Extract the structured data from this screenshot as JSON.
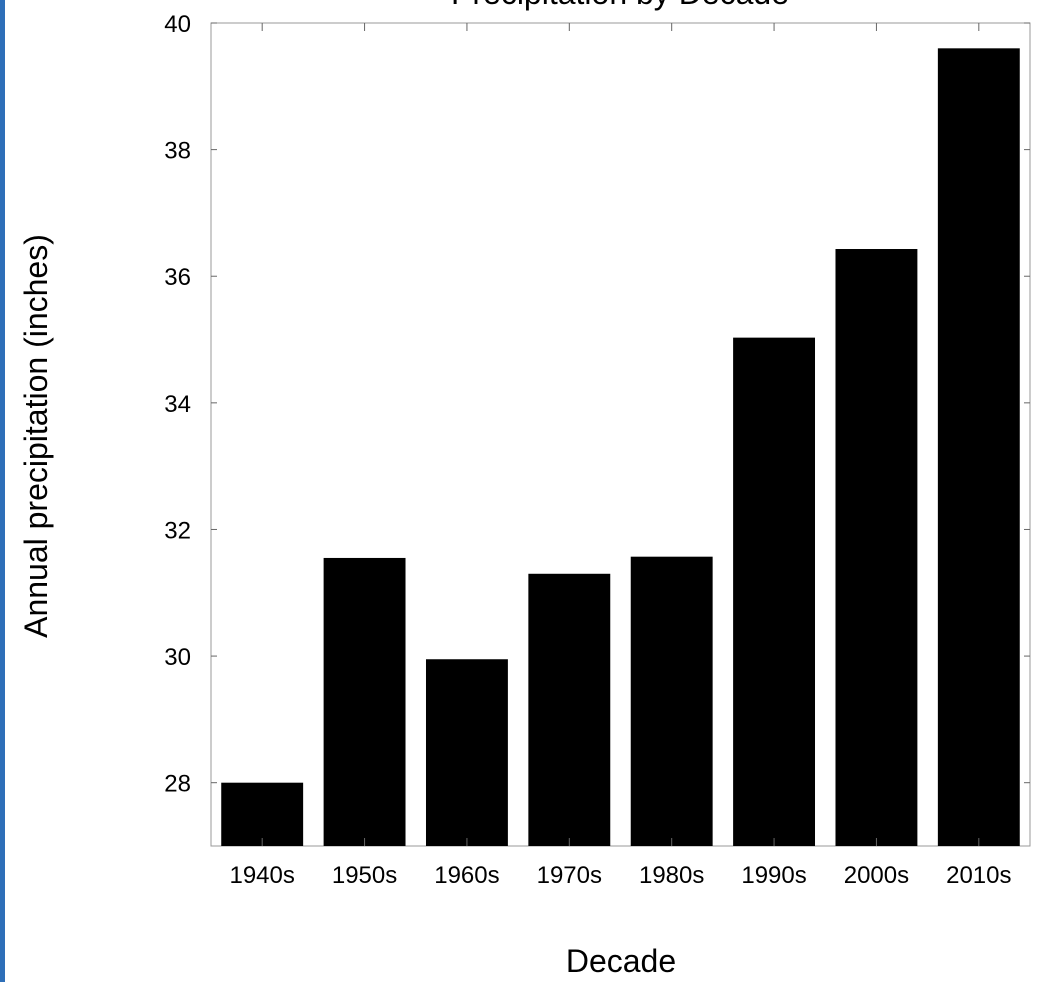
{
  "chart_data": {
    "type": "bar",
    "title": "Precipitation by Decade",
    "xlabel": "Decade",
    "ylabel": "Annual precipitation (inches)",
    "categories": [
      "1940s",
      "1950s",
      "1960s",
      "1970s",
      "1980s",
      "1990s",
      "2000s",
      "2010s"
    ],
    "values": [
      28.0,
      31.55,
      29.95,
      31.3,
      31.57,
      35.03,
      36.43,
      39.6
    ],
    "ylim": [
      27,
      40
    ],
    "yticks": [
      28,
      30,
      32,
      34,
      36,
      38,
      40
    ],
    "bar_color": "#000000",
    "grid": false
  },
  "page": {
    "edge_color": "#2e6fb8"
  }
}
